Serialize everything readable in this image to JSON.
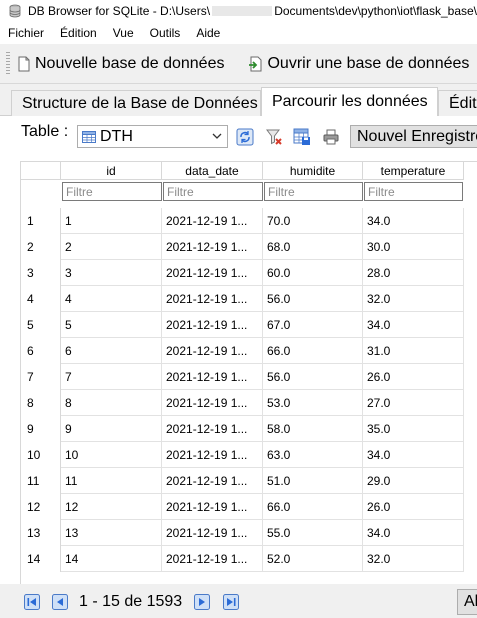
{
  "window": {
    "title_prefix": "DB Browser for SQLite - D:\\Users\\",
    "title_suffix": "Documents\\dev\\python\\iot\\flask_base\\"
  },
  "menu": [
    "Fichier",
    "Édition",
    "Vue",
    "Outils",
    "Aide"
  ],
  "toolbar": {
    "new_db": "Nouvelle base de données",
    "open_db": "Ouvrir une base de données"
  },
  "tabs": [
    {
      "label": "Structure de la Base de Données",
      "active": false
    },
    {
      "label": "Parcourir les données",
      "active": true
    },
    {
      "label": "Édit",
      "active": false
    }
  ],
  "browse": {
    "table_label": "Table :",
    "table_selected": "DTH",
    "new_record": "Nouvel Enregistrement"
  },
  "grid": {
    "columns": [
      "id",
      "data_date",
      "humidite",
      "temperature"
    ],
    "filter_placeholder": "Filtre",
    "rows": [
      {
        "n": "1",
        "id": "1",
        "data_date": "2021-12-19 1...",
        "humidite": "70.0",
        "temperature": "34.0"
      },
      {
        "n": "2",
        "id": "2",
        "data_date": "2021-12-19 1...",
        "humidite": "68.0",
        "temperature": "30.0"
      },
      {
        "n": "3",
        "id": "3",
        "data_date": "2021-12-19 1...",
        "humidite": "60.0",
        "temperature": "28.0"
      },
      {
        "n": "4",
        "id": "4",
        "data_date": "2021-12-19 1...",
        "humidite": "56.0",
        "temperature": "32.0"
      },
      {
        "n": "5",
        "id": "5",
        "data_date": "2021-12-19 1...",
        "humidite": "67.0",
        "temperature": "34.0"
      },
      {
        "n": "6",
        "id": "6",
        "data_date": "2021-12-19 1...",
        "humidite": "66.0",
        "temperature": "31.0"
      },
      {
        "n": "7",
        "id": "7",
        "data_date": "2021-12-19 1...",
        "humidite": "56.0",
        "temperature": "26.0"
      },
      {
        "n": "8",
        "id": "8",
        "data_date": "2021-12-19 1...",
        "humidite": "53.0",
        "temperature": "27.0"
      },
      {
        "n": "9",
        "id": "9",
        "data_date": "2021-12-19 1...",
        "humidite": "58.0",
        "temperature": "35.0"
      },
      {
        "n": "10",
        "id": "10",
        "data_date": "2021-12-19 1...",
        "humidite": "63.0",
        "temperature": "34.0"
      },
      {
        "n": "11",
        "id": "11",
        "data_date": "2021-12-19 1...",
        "humidite": "51.0",
        "temperature": "29.0"
      },
      {
        "n": "12",
        "id": "12",
        "data_date": "2021-12-19 1...",
        "humidite": "66.0",
        "temperature": "26.0"
      },
      {
        "n": "13",
        "id": "13",
        "data_date": "2021-12-19 1...",
        "humidite": "55.0",
        "temperature": "34.0"
      },
      {
        "n": "14",
        "id": "14",
        "data_date": "2021-12-19 1...",
        "humidite": "52.0",
        "temperature": "32.0"
      }
    ]
  },
  "nav": {
    "range": "1 - 15 de 1593",
    "goto": "Al"
  },
  "colors": {
    "accent_blue": "#2b6bd6",
    "border": "#d8d8d8"
  }
}
